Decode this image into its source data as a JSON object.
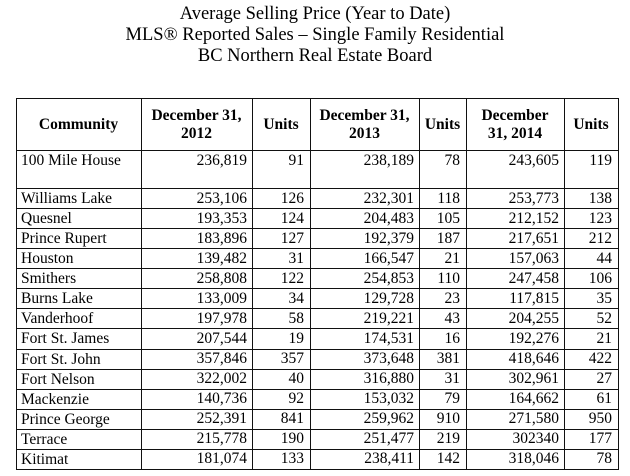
{
  "title": {
    "line1": "Average Selling Price (Year to Date)",
    "line2": "MLS® Reported Sales – Single Family Residential",
    "line3": "BC Northern Real Estate Board"
  },
  "table": {
    "headers": [
      "Community",
      "December 31, 2012",
      "Units",
      "December 31, 2013",
      "Units",
      "December 31, 2014",
      "Units"
    ],
    "rows": [
      [
        "100 Mile House",
        "236,819",
        "91",
        "238,189",
        "78",
        "243,605",
        "119"
      ],
      [
        "Williams Lake",
        "253,106",
        "126",
        "232,301",
        "118",
        "253,773",
        "138"
      ],
      [
        "Quesnel",
        "193,353",
        "124",
        "204,483",
        "105",
        "212,152",
        "123"
      ],
      [
        "Prince Rupert",
        "183,896",
        "127",
        "192,379",
        "187",
        "217,651",
        "212"
      ],
      [
        "Houston",
        "139,482",
        "31",
        "166,547",
        "21",
        "157,063",
        "44"
      ],
      [
        "Smithers",
        "258,808",
        "122",
        "254,853",
        "110",
        "247,458",
        "106"
      ],
      [
        "Burns Lake",
        "133,009",
        "34",
        "129,728",
        "23",
        "117,815",
        "35"
      ],
      [
        "Vanderhoof",
        "197,978",
        "58",
        "219,221",
        "43",
        "204,255",
        "52"
      ],
      [
        "Fort St. James",
        "207,544",
        "19",
        "174,531",
        "16",
        "192,276",
        "21"
      ],
      [
        "Fort St. John",
        "357,846",
        "357",
        "373,648",
        "381",
        "418,646",
        "422"
      ],
      [
        "Fort Nelson",
        "322,002",
        "40",
        "316,880",
        "31",
        "302,961",
        "27"
      ],
      [
        "Mackenzie",
        "140,736",
        "92",
        "153,032",
        "79",
        "164,662",
        "61"
      ],
      [
        "Prince George",
        "252,391",
        "841",
        "259,962",
        "910",
        "271,580",
        "950"
      ],
      [
        "Terrace",
        "215,778",
        "190",
        "251,477",
        "219",
        "302340",
        "177"
      ],
      [
        "Kitimat",
        "181,074",
        "133",
        "238,411",
        "142",
        "318,046",
        "78"
      ]
    ]
  }
}
